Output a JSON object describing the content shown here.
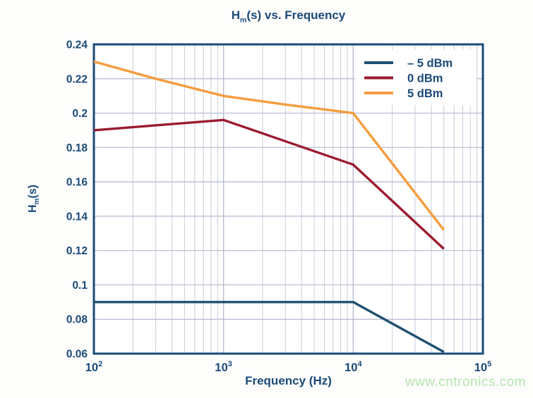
{
  "page": {
    "background": "#fdfdfc",
    "watermark": {
      "text": "www.cntronics.com",
      "color": "#b7e4af"
    }
  },
  "chart_data": {
    "type": "line",
    "title_parts": {
      "prefix": "H",
      "sub": "m",
      "suffix": "(s) vs. Frequency"
    },
    "xlabel": "Frequency (Hz)",
    "ylabel_parts": {
      "prefix": "H",
      "sub": "m",
      "suffix": "(s)"
    },
    "x_scale": "log",
    "xlim": [
      100,
      100000
    ],
    "ylim": [
      0.06,
      0.24
    ],
    "x_ticks": [
      {
        "value": 100,
        "base": "10",
        "exp": "2"
      },
      {
        "value": 1000,
        "base": "10",
        "exp": "3"
      },
      {
        "value": 10000,
        "base": "10",
        "exp": "4"
      },
      {
        "value": 100000,
        "base": "10",
        "exp": "5"
      }
    ],
    "y_ticks": [
      {
        "value": 0.06,
        "label": "0.06"
      },
      {
        "value": 0.08,
        "label": "0.08"
      },
      {
        "value": 0.1,
        "label": "0.1"
      },
      {
        "value": 0.12,
        "label": "0.12"
      },
      {
        "value": 0.14,
        "label": "0.14"
      },
      {
        "value": 0.16,
        "label": "0.16"
      },
      {
        "value": 0.18,
        "label": "0.18"
      },
      {
        "value": 0.2,
        "label": "0.2"
      },
      {
        "value": 0.22,
        "label": "0.22"
      },
      {
        "value": 0.24,
        "label": "0.24"
      }
    ],
    "grid": {
      "show": true,
      "minor_log_x": true,
      "major_color": "#b4b8ce",
      "minor_color": "#c9ccdd"
    },
    "axis_color": "#1b4a78",
    "text_color": "#1b4a78",
    "legend": {
      "position": "top-right",
      "background": "#ffffff"
    },
    "series": [
      {
        "name": "– 5 dBm",
        "color": "#1f4f70",
        "points": [
          [
            100,
            0.09
          ],
          [
            10000,
            0.09
          ],
          [
            50000,
            0.061
          ]
        ]
      },
      {
        "name": "0 dBm",
        "color": "#9b1b30",
        "points": [
          [
            100,
            0.19
          ],
          [
            1000,
            0.196
          ],
          [
            10000,
            0.17
          ],
          [
            50000,
            0.121
          ]
        ]
      },
      {
        "name": "5 dBm",
        "color": "#f59c3e",
        "points": [
          [
            100,
            0.23
          ],
          [
            300,
            0.22
          ],
          [
            1000,
            0.21
          ],
          [
            3000,
            0.205
          ],
          [
            10000,
            0.2
          ],
          [
            50000,
            0.132
          ]
        ]
      }
    ]
  }
}
